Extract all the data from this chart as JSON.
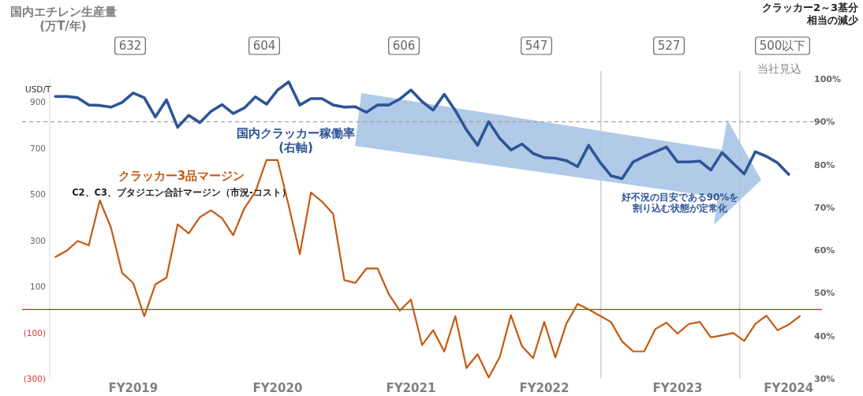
{
  "chart_data": {
    "type": "line",
    "ylabel": "USD/T",
    "categories": [
      null,
      null,
      null,
      null,
      null,
      null,
      null,
      "FY2019",
      null,
      null,
      null,
      null,
      null,
      null,
      null,
      null,
      null,
      null,
      null,
      null,
      "FY2020",
      null,
      null,
      null,
      null,
      null,
      null,
      null,
      null,
      null,
      null,
      null,
      "FY2021",
      null,
      null,
      null,
      null,
      null,
      null,
      null,
      null,
      null,
      null,
      null,
      "FY2022",
      null,
      null,
      null,
      null,
      null,
      null,
      null,
      null,
      null,
      null,
      null,
      "FY2023",
      null,
      null,
      null,
      null,
      null,
      null,
      null,
      null,
      null,
      "FY2024",
      null
    ],
    "ylim": [
      -300,
      1000
    ],
    "yticks": [
      {
        "value": -300,
        "label": "(300)"
      },
      {
        "value": -100,
        "label": "(100)"
      },
      100,
      300,
      500,
      700,
      900
    ],
    "y2lim": [
      30,
      100
    ],
    "y2ticks": [
      {
        "value": 30,
        "label": "30%"
      },
      {
        "value": 40,
        "label": "40%"
      },
      {
        "value": 50,
        "label": "50%"
      },
      {
        "value": 60,
        "label": "60%"
      },
      {
        "value": 70,
        "label": "70%"
      },
      {
        "value": 80,
        "label": "80%"
      },
      {
        "value": 90,
        "label": "90%"
      },
      {
        "value": 100,
        "label": "100%"
      }
    ],
    "series": [
      {
        "name": "国内クラッカー稼働率(右軸)",
        "color": "#2e5597",
        "axis": "y2",
        "values": [
          95.9,
          95.9,
          95.6,
          93.9,
          93.8,
          93.4,
          94.5,
          96.7,
          95.6,
          91.1,
          95.1,
          88.7,
          91.5,
          89.8,
          92.4,
          94.0,
          91.9,
          93.2,
          95.8,
          94.1,
          97.4,
          99.3,
          93.9,
          95.4,
          95.4,
          93.9,
          93.4,
          93.5,
          92.2,
          93.9,
          93.9,
          95.3,
          97.4,
          94.7,
          92.7,
          96.4,
          92.6,
          88.1,
          84.5,
          90.0,
          86.1,
          83.4,
          84.8,
          82.6,
          81.6,
          81.5,
          80.9,
          79.5,
          84.5,
          80.6,
          77.4,
          76.7,
          80.6,
          81.9,
          83.0,
          84.1,
          80.6,
          80.6,
          80.8,
          78.7,
          82.8,
          80.3,
          77.8,
          83.0,
          81.9,
          80.4,
          77.7,
          null
        ]
      },
      {
        "name": "クラッカー3品マージン",
        "color": "#c55a11",
        "values": [
          228,
          254,
          297,
          278,
          473,
          355,
          159,
          115,
          -29,
          109,
          138,
          369,
          330,
          400,
          430,
          396,
          322,
          438,
          510,
          648,
          648,
          450,
          240,
          507,
          468,
          414,
          127,
          115,
          178,
          178,
          67,
          -5,
          43,
          -154,
          -90,
          -182,
          -29,
          -254,
          -194,
          -295,
          -206,
          -25,
          -160,
          -211,
          -54,
          -208,
          -61,
          24,
          0,
          -27,
          -54,
          -138,
          -182,
          -182,
          -85,
          -57,
          -105,
          -63,
          -54,
          -121,
          -112,
          -102,
          -136,
          -63,
          -27,
          -90,
          -66,
          -29
        ]
      }
    ],
    "ref_lines": [
      {
        "axis": "y",
        "value": 0,
        "color": "#e02020",
        "line_style": "solid"
      },
      {
        "axis": "y2",
        "value": 90,
        "color": "#a0a0a0",
        "line_style": "dashed"
      }
    ],
    "annotations": [
      "国内エチレン生産量(万T/年)",
      "632",
      "604",
      "606",
      "547",
      "527",
      "500以下",
      "当社見込",
      "クラッカー2～3基分相当の減少",
      "C2、C3、ブタジエン合計マージン（市況-コスト）",
      "好不況の目安である90%を割り込む状態が定常化"
    ],
    "legend": false,
    "grid": false,
    "marker": "none",
    "line_style": "solid"
  }
}
